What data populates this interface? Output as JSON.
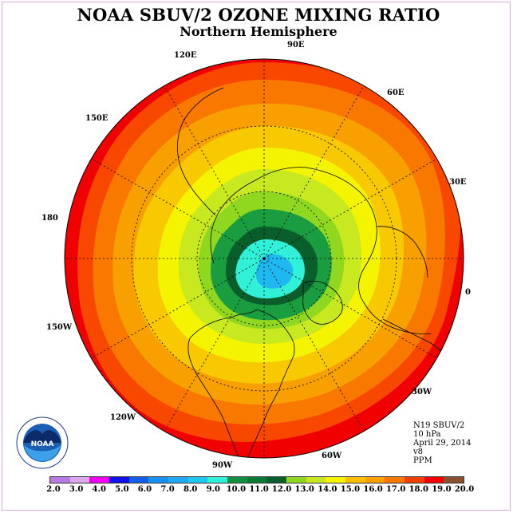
{
  "title": "NOAA SBUV/2 OZONE MIXING RATIO",
  "subtitle": "Northern Hemisphere",
  "longitude_labels": {
    "e120": "120E",
    "e90": "90E",
    "e60": "60E",
    "e150": "150E",
    "e30": "30E",
    "e180": "180",
    "e0": "0",
    "w150": "150W",
    "w30": "30W",
    "w120": "120W",
    "w60": "60W",
    "w90": "90W"
  },
  "info": {
    "satellite": "N19 SBUV/2",
    "pressure_level": "10 hPa",
    "date": "April 29, 2014",
    "version": "v8",
    "units": "PPM"
  },
  "logo": {
    "text": "NOAA",
    "ring_text": "NATIONAL OCEANIC AND ATMOSPHERIC ADMINISTRATION · U.S. DEPARTMENT OF COMMERCE"
  },
  "colorbar": {
    "ticks": [
      "2.0",
      "3.0",
      "4.0",
      "5.0",
      "6.0",
      "7.0",
      "8.0",
      "9.0",
      "10.0",
      "11.0",
      "12.0",
      "13.0",
      "14.0",
      "15.0",
      "16.0",
      "17.0",
      "18.0",
      "19.0",
      "20.0"
    ],
    "colors": [
      "#b57be0",
      "#dca7ec",
      "#ee00ee",
      "#1010e8",
      "#1060e8",
      "#1890f0",
      "#20a8f0",
      "#20c8f0",
      "#30f0d8",
      "#109040",
      "#0c7a34",
      "#0a5e2c",
      "#90d820",
      "#c8e820",
      "#f4f400",
      "#f8c000",
      "#f8a000",
      "#f87800",
      "#f04000",
      "#f00000",
      "#8a5030"
    ]
  },
  "contour_colors": {
    "outer": "#f00000",
    "ring_18": "#f84800",
    "ring_17": "#f87800",
    "ring_16": "#f8a000",
    "ring_15": "#f8c800",
    "ring_14": "#f4f400",
    "ring_13": "#c8e820",
    "ring_12": "#90d820",
    "ring_11": "#1a9c40",
    "ring_10": "#0a5e2c",
    "inner_9": "#30f0d8",
    "inner_8": "#20b8f0"
  }
}
